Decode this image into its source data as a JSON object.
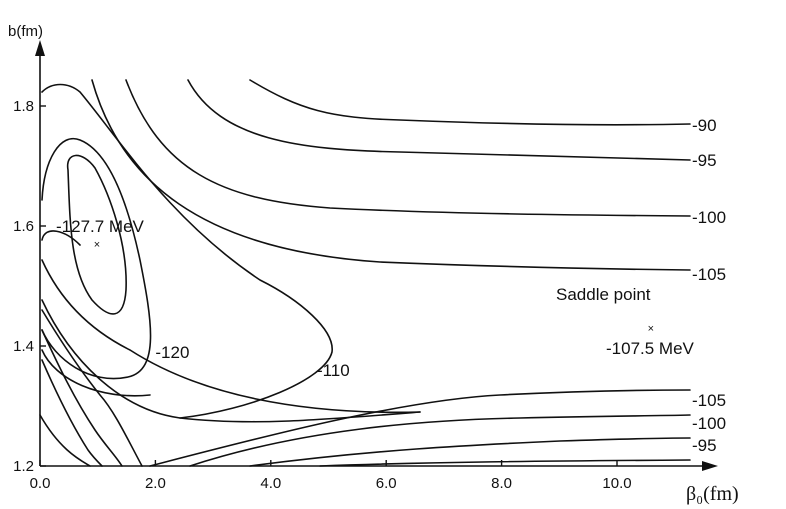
{
  "chart_data": {
    "type": "contour",
    "ylabel": "b(fm)",
    "xlabel": "β₀(fm)",
    "xlim": [
      0.0,
      11.0
    ],
    "ylim": [
      1.2,
      1.9
    ],
    "xticks": [
      "0.0",
      "2.0",
      "4.0",
      "6.0",
      "8.0",
      "10.0"
    ],
    "yticks": [
      "1.2",
      "1.4",
      "1.6",
      "1.8"
    ],
    "contour_labels": [
      {
        "text": "-90",
        "x": 11.3,
        "y": 1.768
      },
      {
        "text": "-95",
        "x": 11.3,
        "y": 1.71
      },
      {
        "text": "-100",
        "x": 11.3,
        "y": 1.615
      },
      {
        "text": "-105",
        "x": 11.3,
        "y": 1.52
      },
      {
        "text": "-120",
        "x": 2.0,
        "y": 1.39
      },
      {
        "text": "-110",
        "x": 4.8,
        "y": 1.36
      },
      {
        "text": "-105",
        "x": 11.3,
        "y": 1.31
      },
      {
        "text": "-100",
        "x": 11.3,
        "y": 1.272
      },
      {
        "text": "-95",
        "x": 11.3,
        "y": 1.235
      }
    ],
    "minimum": {
      "label": "-127.7 MeV",
      "x": 1.0,
      "y": 1.57
    },
    "saddle_point": {
      "title": "Saddle point",
      "label": "-107.5 MeV",
      "x": 10.6,
      "y": 1.43
    }
  }
}
